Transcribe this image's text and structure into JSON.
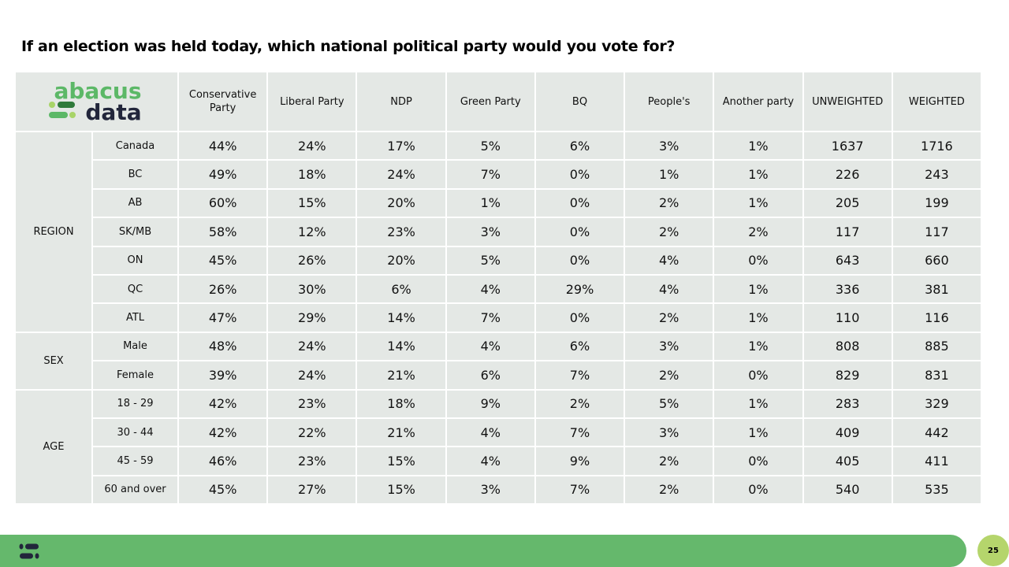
{
  "title": "If an election was held today, which national political party would you vote for?",
  "logo": {
    "line1": "abacus",
    "line2": "data",
    "colors": {
      "green": "#5cb867",
      "dark": "#22263b",
      "light": "#a8d468"
    }
  },
  "columns": [
    "Conservative Party",
    "Liberal Party",
    "NDP",
    "Green Party",
    "BQ",
    "People's",
    "Another party",
    "UNWEIGHTED",
    "WEIGHTED"
  ],
  "groups": [
    {
      "name": "REGION",
      "rows": [
        {
          "label": "Canada",
          "values": [
            "44%",
            "24%",
            "17%",
            "5%",
            "6%",
            "3%",
            "1%",
            "1637",
            "1716"
          ]
        },
        {
          "label": "BC",
          "values": [
            "49%",
            "18%",
            "24%",
            "7%",
            "0%",
            "1%",
            "1%",
            "226",
            "243"
          ]
        },
        {
          "label": "AB",
          "values": [
            "60%",
            "15%",
            "20%",
            "1%",
            "0%",
            "2%",
            "1%",
            "205",
            "199"
          ]
        },
        {
          "label": "SK/MB",
          "values": [
            "58%",
            "12%",
            "23%",
            "3%",
            "0%",
            "2%",
            "2%",
            "117",
            "117"
          ]
        },
        {
          "label": "ON",
          "values": [
            "45%",
            "26%",
            "20%",
            "5%",
            "0%",
            "4%",
            "0%",
            "643",
            "660"
          ]
        },
        {
          "label": "QC",
          "values": [
            "26%",
            "30%",
            "6%",
            "4%",
            "29%",
            "4%",
            "1%",
            "336",
            "381"
          ]
        },
        {
          "label": "ATL",
          "values": [
            "47%",
            "29%",
            "14%",
            "7%",
            "0%",
            "2%",
            "1%",
            "110",
            "116"
          ]
        }
      ]
    },
    {
      "name": "SEX",
      "rows": [
        {
          "label": "Male",
          "values": [
            "48%",
            "24%",
            "14%",
            "4%",
            "6%",
            "3%",
            "1%",
            "808",
            "885"
          ]
        },
        {
          "label": "Female",
          "values": [
            "39%",
            "24%",
            "21%",
            "6%",
            "7%",
            "2%",
            "0%",
            "829",
            "831"
          ]
        }
      ]
    },
    {
      "name": "AGE",
      "rows": [
        {
          "label": "18 - 29",
          "values": [
            "42%",
            "23%",
            "18%",
            "9%",
            "2%",
            "5%",
            "1%",
            "283",
            "329"
          ]
        },
        {
          "label": "30 - 44",
          "values": [
            "42%",
            "22%",
            "21%",
            "4%",
            "7%",
            "3%",
            "1%",
            "409",
            "442"
          ]
        },
        {
          "label": "45 - 59",
          "values": [
            "46%",
            "23%",
            "15%",
            "4%",
            "9%",
            "2%",
            "0%",
            "405",
            "411"
          ]
        },
        {
          "label": "60 and over",
          "values": [
            "45%",
            "27%",
            "15%",
            "3%",
            "7%",
            "2%",
            "0%",
            "540",
            "535"
          ]
        }
      ]
    }
  ],
  "footer": {
    "page_number": "25",
    "bar_color": "#65b86c",
    "badge_color": "#b5d56c"
  }
}
